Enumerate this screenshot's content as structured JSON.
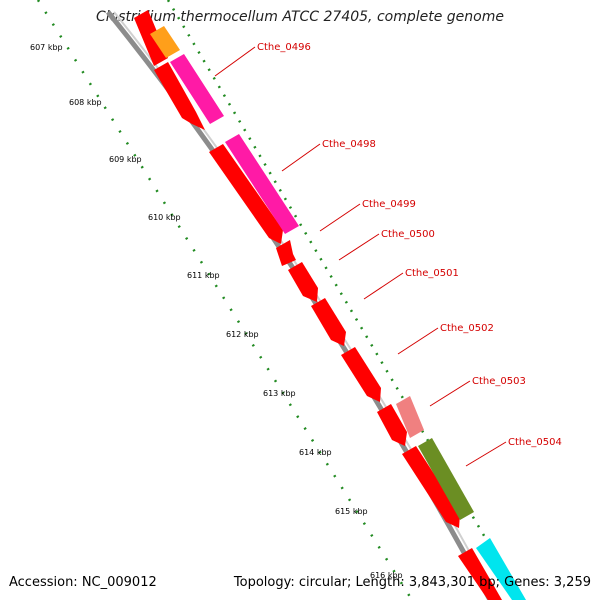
{
  "title": "Clostridium thermocellum ATCC 27405, complete genome",
  "footer": {
    "accession": "Accession: NC_009012",
    "summary": "Topology: circular; Length: 3,843,301 bp; Genes: 3,259"
  },
  "ticks": [
    "607 kbp",
    "608 kbp",
    "609 kbp",
    "610 kbp",
    "611 kbp",
    "612 kbp",
    "613 kbp",
    "614 kbp",
    "615 kbp",
    "616 kbp"
  ],
  "gene_labels": [
    "Cthe_0496",
    "Cthe_0498",
    "Cthe_0499",
    "Cthe_0500",
    "Cthe_0501",
    "Cthe_0502",
    "Cthe_0503",
    "Cthe_0504"
  ],
  "colors": {
    "cds": "#ff0000",
    "backbone": "#8c8c8c",
    "tick_dots": "#228b22",
    "label": "#d40000",
    "magenta": "#ff1aa6",
    "orange": "#ff9f1a",
    "salmon": "#f08080",
    "olive": "#6b8e23",
    "cyan": "#00e5ee"
  }
}
